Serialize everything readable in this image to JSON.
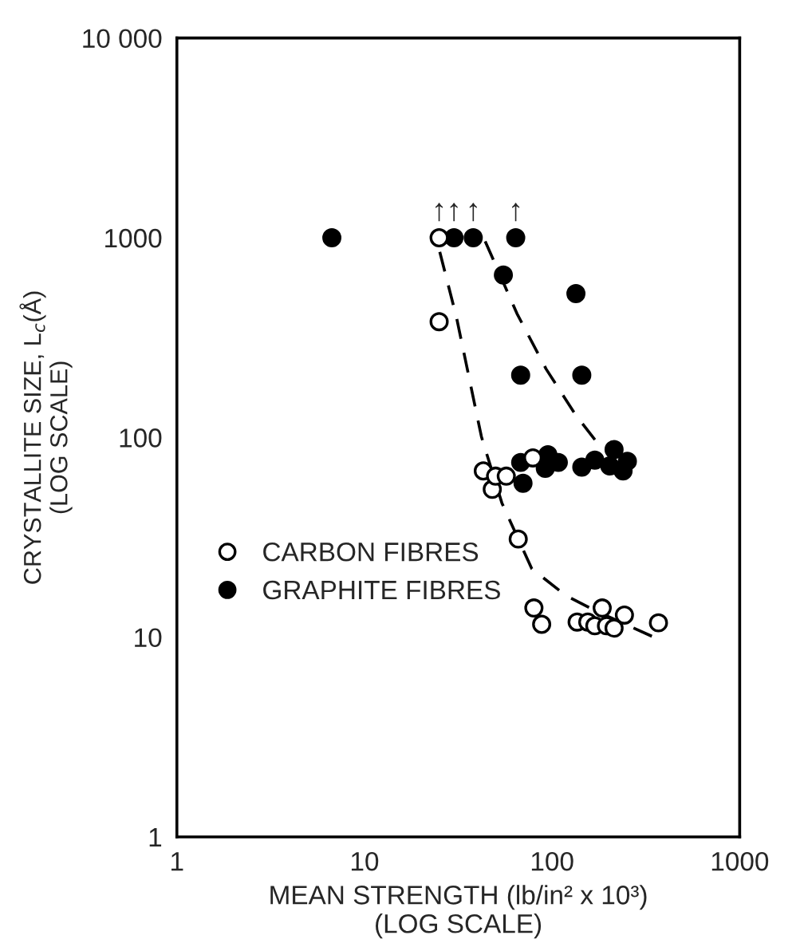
{
  "chart_data": {
    "type": "scatter",
    "xlabel": "MEAN STRENGTH (lb/in² x 10³)\n(LOG SCALE)",
    "ylabel": "CRYSTALLITE SIZE, L$_{c}$(Å)\n(LOG SCALE)",
    "log": "xy",
    "xlim": [
      1,
      1000
    ],
    "ylim": [
      1,
      10000
    ],
    "xticks": [
      1,
      10,
      100,
      1000
    ],
    "yticks": [
      1,
      10,
      100,
      1000,
      {
        "value": 10000,
        "label": "10 000"
      }
    ],
    "grid": false,
    "legend": "center left",
    "marker": "circle",
    "series": [
      {
        "name": "CARBON FIBRES",
        "color": "#ffffff",
        "x": [
          25,
          25,
          43,
          48,
          50,
          57,
          79,
          66,
          80,
          88,
          136,
          155,
          169,
          185,
          195,
          214,
          243,
          369
        ],
        "values": [
          1000,
          380,
          68,
          55,
          64,
          64,
          79,
          31,
          14,
          11.6,
          11.9,
          11.9,
          11.4,
          14,
          11.4,
          11.1,
          12.9,
          11.8
        ]
      },
      {
        "name": "GRAPHITE FIBRES",
        "color": "#000000",
        "x": [
          6.7,
          30,
          38,
          64,
          55,
          134,
          68,
          144,
          68,
          70,
          95,
          92,
          108,
          144,
          169,
          214,
          203,
          252,
          239
        ],
        "values": [
          1000,
          1000,
          1000,
          1000,
          650,
          525,
          205,
          205,
          75,
          59,
          82,
          70,
          75,
          71,
          77,
          87,
          72,
          76,
          68
        ]
      },
      {
        "type": "line",
        "marker": "none",
        "line_style": "dashed",
        "color": "#000000",
        "x": [
          25.2,
          31,
          42,
          54,
          78,
          118,
          169,
          349
        ],
        "values": [
          849,
          396,
          101,
          47,
          22,
          16.2,
          13.6,
          10
        ]
      },
      {
        "type": "line",
        "marker": "none",
        "line_style": "dashed",
        "color": "#000000",
        "x": [
          44,
          65,
          93,
          134,
          179
        ],
        "values": [
          960,
          417,
          220,
          129,
          91
        ]
      }
    ],
    "annotations": [
      {
        "text": "↑",
        "x": 25,
        "y": 1000
      },
      {
        "text": "↑",
        "x": 30,
        "y": 1000
      },
      {
        "text": "↑",
        "x": 38,
        "y": 1000
      },
      {
        "text": "↑",
        "x": 64,
        "y": 1000
      }
    ]
  }
}
